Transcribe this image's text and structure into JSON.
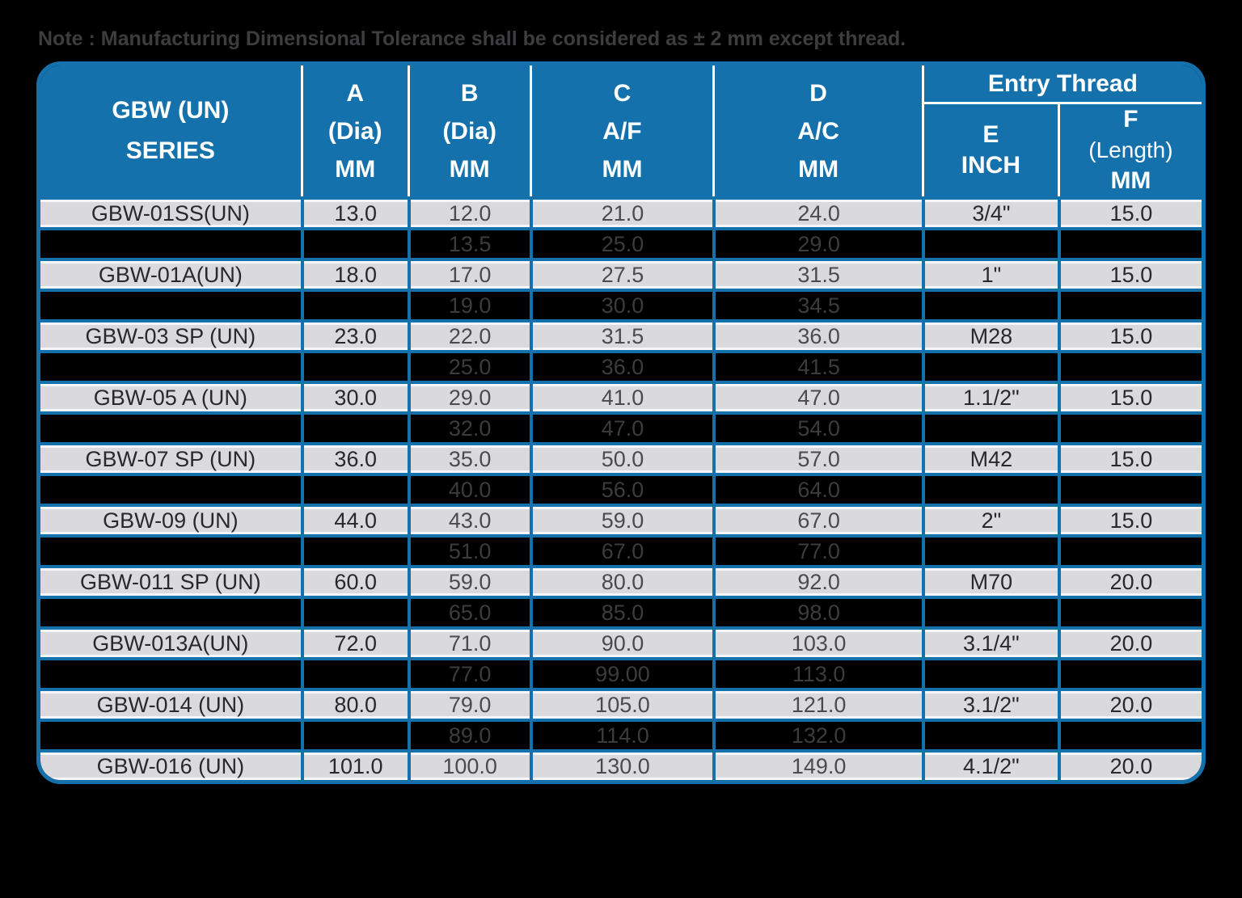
{
  "note": {
    "text": "Note : Manufacturing Dimensional Tolerance shall be considered as ± 2 mm except thread."
  },
  "colors": {
    "blue": "#1571ac",
    "row_gray": "#dadadc",
    "row_dark": "#000000",
    "header_text": "#ffffff",
    "note_text": "#3d3d3f"
  },
  "table": {
    "header": {
      "series_lines": [
        "GBW (UN)",
        "SERIES"
      ],
      "col_a": [
        "A",
        "(Dia)",
        "MM"
      ],
      "col_b": [
        "B",
        "(Dia)",
        "MM"
      ],
      "col_c": [
        "C",
        "A/F",
        "MM"
      ],
      "col_d": [
        "D",
        "A/C",
        "MM"
      ],
      "entry_thread": "Entry Thread",
      "col_e": [
        "E",
        "INCH"
      ],
      "col_f": [
        "F",
        "(Length)",
        "MM"
      ]
    },
    "rows": [
      {
        "shade": "light",
        "series": "GBW-01SS(UN)",
        "a": "13.0",
        "b": "12.0",
        "c": "21.0",
        "d": "24.0",
        "e": "3/4\"",
        "f": "15.0"
      },
      {
        "shade": "dark",
        "series": "",
        "a": "",
        "b": "13.5",
        "c": "25.0",
        "d": "29.0",
        "e": "",
        "f": ""
      },
      {
        "shade": "light",
        "series": "GBW-01A(UN)",
        "a": "18.0",
        "b": "17.0",
        "c": "27.5",
        "d": "31.5",
        "e": "1\"",
        "f": "15.0"
      },
      {
        "shade": "dark",
        "series": "",
        "a": "",
        "b": "19.0",
        "c": "30.0",
        "d": "34.5",
        "e": "",
        "f": ""
      },
      {
        "shade": "light",
        "series": "GBW-03 SP (UN)",
        "a": "23.0",
        "b": "22.0",
        "c": "31.5",
        "d": "36.0",
        "e": "M28",
        "f": "15.0"
      },
      {
        "shade": "dark",
        "series": "",
        "a": "",
        "b": "25.0",
        "c": "36.0",
        "d": "41.5",
        "e": "",
        "f": ""
      },
      {
        "shade": "light",
        "series": "GBW-05 A (UN)",
        "a": "30.0",
        "b": "29.0",
        "c": "41.0",
        "d": "47.0",
        "e": "1.1/2\"",
        "f": "15.0"
      },
      {
        "shade": "dark",
        "series": "",
        "a": "",
        "b": "32.0",
        "c": "47.0",
        "d": "54.0",
        "e": "",
        "f": ""
      },
      {
        "shade": "light",
        "series": "GBW-07 SP (UN)",
        "a": "36.0",
        "b": "35.0",
        "c": "50.0",
        "d": "57.0",
        "e": "M42",
        "f": "15.0"
      },
      {
        "shade": "dark",
        "series": "",
        "a": "",
        "b": "40.0",
        "c": "56.0",
        "d": "64.0",
        "e": "",
        "f": ""
      },
      {
        "shade": "light",
        "series": "GBW-09 (UN)",
        "a": "44.0",
        "b": "43.0",
        "c": "59.0",
        "d": "67.0",
        "e": "2\"",
        "f": "15.0"
      },
      {
        "shade": "dark",
        "series": "",
        "a": "",
        "b": "51.0",
        "c": "67.0",
        "d": "77.0",
        "e": "",
        "f": ""
      },
      {
        "shade": "light",
        "series": "GBW-011 SP (UN)",
        "a": "60.0",
        "b": "59.0",
        "c": "80.0",
        "d": "92.0",
        "e": "M70",
        "f": "20.0"
      },
      {
        "shade": "dark",
        "series": "",
        "a": "",
        "b": "65.0",
        "c": "85.0",
        "d": "98.0",
        "e": "",
        "f": ""
      },
      {
        "shade": "light",
        "series": "GBW-013A(UN)",
        "a": "72.0",
        "b": "71.0",
        "c": "90.0",
        "d": "103.0",
        "e": "3.1/4\"",
        "f": "20.0"
      },
      {
        "shade": "dark",
        "series": "",
        "a": "",
        "b": "77.0",
        "c": "99.00",
        "d": "113.0",
        "e": "",
        "f": ""
      },
      {
        "shade": "light",
        "series": "GBW-014 (UN)",
        "a": "80.0",
        "b": "79.0",
        "c": "105.0",
        "d": "121.0",
        "e": "3.1/2\"",
        "f": "20.0"
      },
      {
        "shade": "dark",
        "series": "",
        "a": "",
        "b": "89.0",
        "c": "114.0",
        "d": "132.0",
        "e": "",
        "f": ""
      },
      {
        "shade": "light",
        "series": "GBW-016 (UN)",
        "a": "101.0",
        "b": "100.0",
        "c": "130.0",
        "d": "149.0",
        "e": "4.1/2\"",
        "f": "20.0"
      }
    ]
  },
  "chart_data": {
    "type": "table",
    "note": "Note : Manufacturing Dimensional Tolerance shall be considered as ± 2 mm except thread.",
    "columns": [
      "GBW (UN) SERIES",
      "A (Dia) MM",
      "B (Dia) MM",
      "C A/F MM",
      "D A/C MM",
      "Entry Thread E INCH",
      "Entry Thread F (Length) MM"
    ],
    "rows": [
      [
        "GBW-01SS(UN)",
        "13.0",
        "12.0",
        "21.0",
        "24.0",
        "3/4\"",
        "15.0"
      ],
      [
        "",
        "",
        "13.5",
        "25.0",
        "29.0",
        "",
        ""
      ],
      [
        "GBW-01A(UN)",
        "18.0",
        "17.0",
        "27.5",
        "31.5",
        "1\"",
        "15.0"
      ],
      [
        "",
        "",
        "19.0",
        "30.0",
        "34.5",
        "",
        ""
      ],
      [
        "GBW-03 SP (UN)",
        "23.0",
        "22.0",
        "31.5",
        "36.0",
        "M28",
        "15.0"
      ],
      [
        "",
        "",
        "25.0",
        "36.0",
        "41.5",
        "",
        ""
      ],
      [
        "GBW-05 A (UN)",
        "30.0",
        "29.0",
        "41.0",
        "47.0",
        "1.1/2\"",
        "15.0"
      ],
      [
        "",
        "",
        "32.0",
        "47.0",
        "54.0",
        "",
        ""
      ],
      [
        "GBW-07 SP (UN)",
        "36.0",
        "35.0",
        "50.0",
        "57.0",
        "M42",
        "15.0"
      ],
      [
        "",
        "",
        "40.0",
        "56.0",
        "64.0",
        "",
        ""
      ],
      [
        "GBW-09 (UN)",
        "44.0",
        "43.0",
        "59.0",
        "67.0",
        "2\"",
        "15.0"
      ],
      [
        "",
        "",
        "51.0",
        "67.0",
        "77.0",
        "",
        ""
      ],
      [
        "GBW-011 SP (UN)",
        "60.0",
        "59.0",
        "80.0",
        "92.0",
        "M70",
        "20.0"
      ],
      [
        "",
        "",
        "65.0",
        "85.0",
        "98.0",
        "",
        ""
      ],
      [
        "GBW-013A(UN)",
        "72.0",
        "71.0",
        "90.0",
        "103.0",
        "3.1/4\"",
        "20.0"
      ],
      [
        "",
        "",
        "77.0",
        "99.00",
        "113.0",
        "",
        ""
      ],
      [
        "GBW-014 (UN)",
        "80.0",
        "79.0",
        "105.0",
        "121.0",
        "3.1/2\"",
        "20.0"
      ],
      [
        "",
        "",
        "89.0",
        "114.0",
        "132.0",
        "",
        ""
      ],
      [
        "GBW-016 (UN)",
        "101.0",
        "100.0",
        "130.0",
        "149.0",
        "4.1/2\"",
        "20.0"
      ]
    ]
  }
}
